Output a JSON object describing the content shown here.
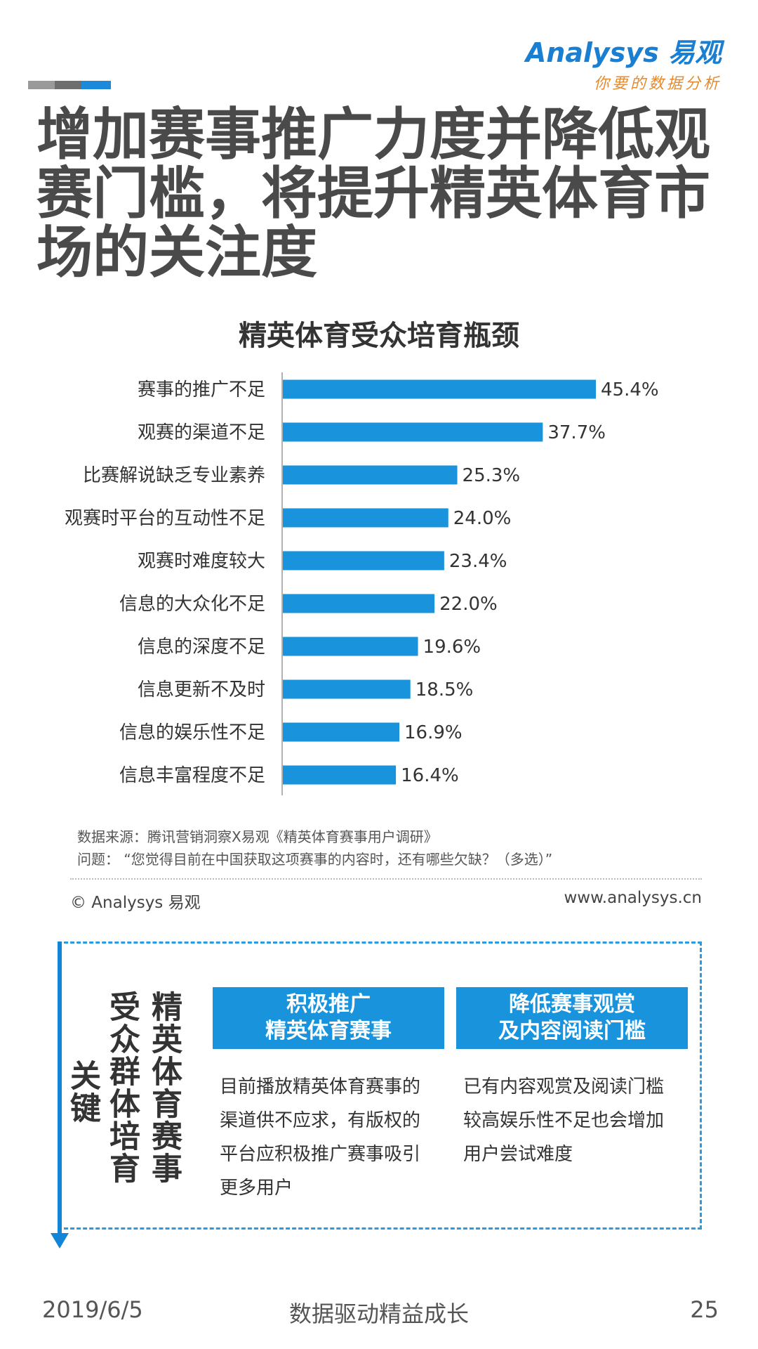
{
  "header": {
    "logo_text": "Analysys 易观",
    "logo_tagline": "你要的数据分析",
    "title": "增加赛事推广力度并降低观赛门槛，将提升精英体育市场的关注度",
    "deco_colors": [
      "#9a9a9a",
      "#6e6e6e",
      "#1c8ad8"
    ]
  },
  "chart_data": {
    "type": "bar",
    "orientation": "horizontal",
    "title": "精英体育受众培育瓶颈",
    "categories": [
      "赛事的推广不足",
      "观赛的渠道不足",
      "比赛解说缺乏专业素养",
      "观赛时平台的互动性不足",
      "观赛时难度较大",
      "信息的大众化不足",
      "信息的深度不足",
      "信息更新不及时",
      "信息的娱乐性不足",
      "信息丰富程度不足"
    ],
    "values": [
      45.4,
      37.7,
      25.3,
      24.0,
      23.4,
      22.0,
      19.6,
      18.5,
      16.9,
      16.4
    ],
    "value_labels": [
      "45.4%",
      "37.7%",
      "25.3%",
      "24.0%",
      "23.4%",
      "22.0%",
      "19.6%",
      "18.5%",
      "16.9%",
      "16.4%"
    ],
    "xlim": [
      0,
      45.4
    ],
    "bar_color": "#1893dc",
    "grid": false
  },
  "notes": {
    "source": "数据来源：腾讯营销洞察X易观《精英体育赛事用户调研》",
    "question": "问题：  “您觉得目前在中国获取这项赛事的内容时，还有哪些欠缺？（多选）”"
  },
  "credits": {
    "copyright": "© Analysys 易观",
    "website": "www.analysys.cn"
  },
  "keys": {
    "col_a": "精英体育赛事",
    "col_b": "受众群体培育",
    "col_c": "关键",
    "item1_title_l1": "积极推广",
    "item1_title_l2": "精英体育赛事",
    "item1_desc": "目前播放精英体育赛事的渠道供不应求，有版权的平台应积极推广赛事吸引更多用户",
    "item2_title_l1": "降低赛事观赏",
    "item2_title_l2": "及内容阅读门槛",
    "item2_desc": "已有内容观赏及阅读门槛较高娱乐性不足也会增加用户尝试难度",
    "accent_color": "#1893dc"
  },
  "footer": {
    "date": "2019/6/5",
    "slogan": "数据驱动精益成长",
    "page": "25"
  }
}
